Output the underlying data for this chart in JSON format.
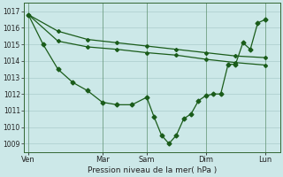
{
  "bg_color": "#cce8e8",
  "grid_color": "#aacccc",
  "line_color": "#1a5c1a",
  "title": "Pression niveau de la mer( hPa )",
  "ylim": [
    1008.5,
    1017.5
  ],
  "yticks": [
    1009,
    1010,
    1011,
    1012,
    1013,
    1014,
    1015,
    1016,
    1017
  ],
  "x_day_labels": [
    "Ven",
    "Mar",
    "Sam",
    "Dim",
    "Lun"
  ],
  "x_day_positions": [
    0,
    5,
    8,
    12,
    16
  ],
  "xlim": [
    -0.3,
    17.0
  ],
  "line1_x": [
    0,
    2,
    4,
    6,
    8,
    10,
    12,
    14,
    16
  ],
  "line1_y": [
    1016.8,
    1015.8,
    1015.3,
    1015.1,
    1014.9,
    1014.7,
    1014.5,
    1014.3,
    1014.2
  ],
  "line2_x": [
    0,
    2,
    4,
    6,
    8,
    10,
    12,
    14,
    16
  ],
  "line2_y": [
    1016.8,
    1015.2,
    1014.85,
    1014.7,
    1014.5,
    1014.35,
    1014.1,
    1013.9,
    1013.75
  ],
  "line3_x": [
    0,
    1,
    2,
    3,
    4,
    5,
    6,
    7,
    8,
    8.5,
    9,
    9.5,
    10,
    10.5,
    11,
    11.5,
    12,
    12.5,
    13,
    13.5,
    14,
    14.5,
    15,
    15.5,
    16
  ],
  "line3_y": [
    1016.8,
    1015.0,
    1013.5,
    1012.7,
    1012.2,
    1011.5,
    1011.35,
    1011.35,
    1011.8,
    1010.6,
    1009.5,
    1009.0,
    1009.5,
    1010.5,
    1010.8,
    1011.6,
    1011.9,
    1012.0,
    1012.0,
    1013.8,
    1013.8,
    1015.1,
    1014.7,
    1016.3,
    1016.5
  ]
}
